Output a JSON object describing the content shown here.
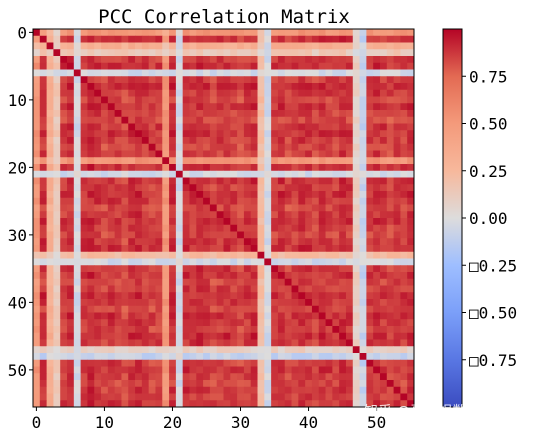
{
  "chart_data": {
    "type": "heatmap",
    "title": "PCC Correlation Matrix",
    "n": 56,
    "x_ticks": [
      "0",
      "10",
      "20",
      "30",
      "40",
      "50"
    ],
    "y_ticks": [
      "0",
      "10",
      "20",
      "30",
      "40",
      "50"
    ],
    "tick_values": [
      0,
      10,
      20,
      30,
      40,
      50
    ],
    "colorbar": {
      "colormap": "coolwarm",
      "range": [
        -1.0,
        1.0
      ],
      "ticks": [
        0.75,
        0.5,
        0.25,
        0.0,
        -0.25,
        -0.5,
        -0.75
      ],
      "tick_labels": [
        "0.75",
        "0.50",
        "0.25",
        "0.00",
        "□0.25",
        "□0.50",
        "□0.75"
      ]
    },
    "variable_loadings": [
      0.55,
      0.95,
      0.35,
      0.15,
      0.92,
      0.96,
      -0.05,
      0.93,
      0.97,
      0.94,
      0.9,
      0.95,
      0.92,
      0.88,
      0.95,
      0.96,
      0.93,
      0.9,
      0.92,
      0.55,
      0.95,
      -0.05,
      0.95,
      0.93,
      0.96,
      0.94,
      0.9,
      0.93,
      0.95,
      0.92,
      0.9,
      0.94,
      0.96,
      0.25,
      -0.05,
      0.93,
      0.95,
      0.9,
      0.92,
      0.96,
      0.94,
      0.9,
      0.95,
      0.93,
      0.92,
      0.96,
      0.94,
      0.1,
      -0.1,
      0.92,
      0.95,
      0.93,
      0.9,
      0.94,
      0.92,
      0.95
    ],
    "diagonal": 1.0
  },
  "watermark": "知乎 @哥廷根数学学派"
}
